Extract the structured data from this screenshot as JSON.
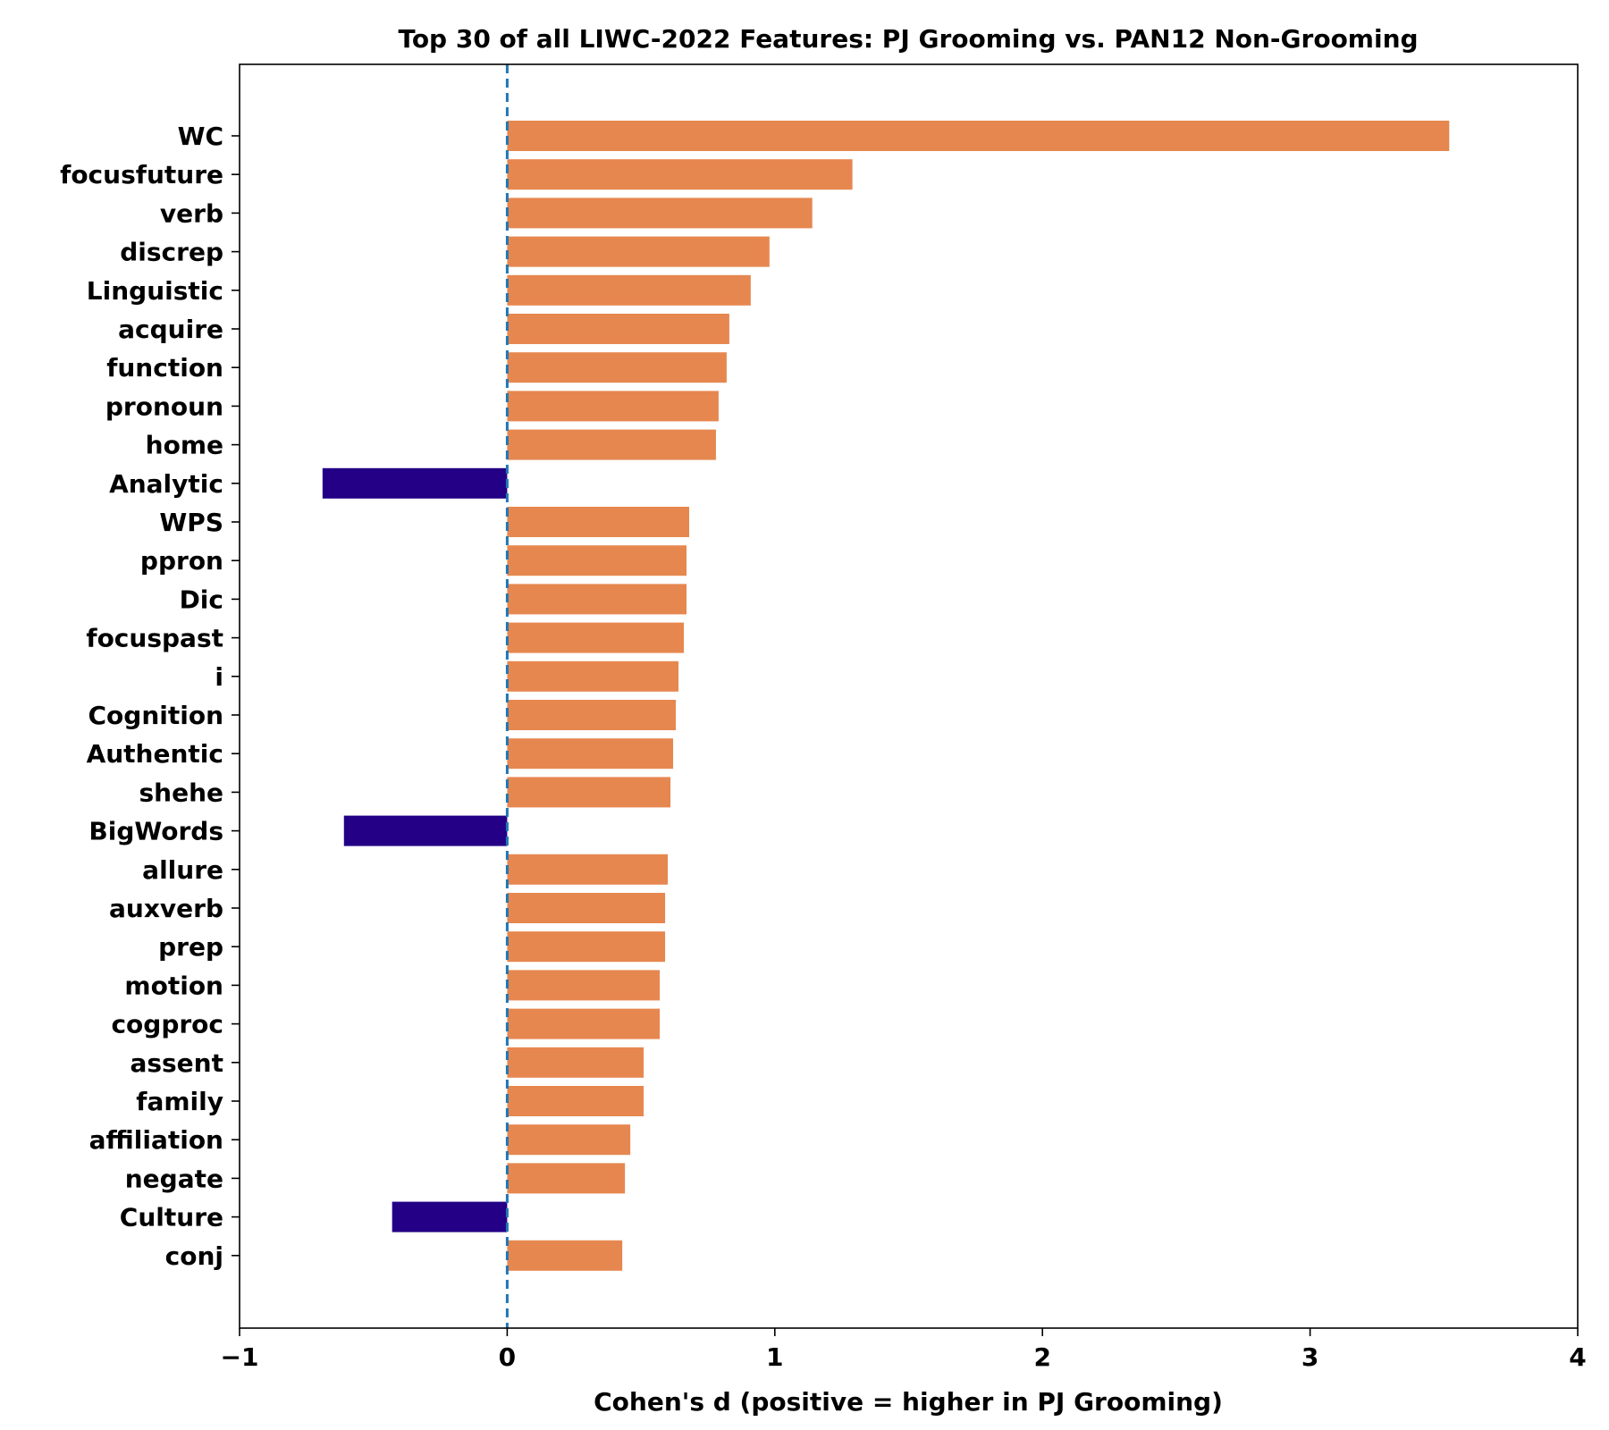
{
  "chart_data": {
    "type": "bar",
    "orientation": "horizontal",
    "title": "Top 30 of all LIWC-2022 Features: PJ Grooming vs. PAN12 Non-Grooming",
    "xlabel": "Cohen's d (positive = higher in PJ Grooming)",
    "ylabel": "",
    "xlim": [
      -1,
      4
    ],
    "xticks": [
      -1,
      0,
      1,
      2,
      3,
      4
    ],
    "xtick_labels": [
      "−1",
      "0",
      "1",
      "2",
      "3",
      "4"
    ],
    "reference_line": {
      "x": 0,
      "style": "dashed",
      "color": "#1f77b4"
    },
    "grid": false,
    "legend": "none",
    "colors": {
      "positive": "#e6874f",
      "negative": "#230086"
    },
    "categories": [
      "WC",
      "focusfuture",
      "verb",
      "discrep",
      "Linguistic",
      "acquire",
      "function",
      "pronoun",
      "home",
      "Analytic",
      "WPS",
      "ppron",
      "Dic",
      "focuspast",
      "i",
      "Cognition",
      "Authentic",
      "shehe",
      "BigWords",
      "allure",
      "auxverb",
      "prep",
      "motion",
      "cogproc",
      "assent",
      "family",
      "affiliation",
      "negate",
      "Culture",
      "conj"
    ],
    "values": [
      3.52,
      1.29,
      1.14,
      0.98,
      0.91,
      0.83,
      0.82,
      0.79,
      0.78,
      -0.69,
      0.68,
      0.67,
      0.67,
      0.66,
      0.64,
      0.63,
      0.62,
      0.61,
      -0.61,
      0.6,
      0.59,
      0.59,
      0.57,
      0.57,
      0.51,
      0.51,
      0.46,
      0.44,
      -0.43,
      0.43
    ]
  }
}
